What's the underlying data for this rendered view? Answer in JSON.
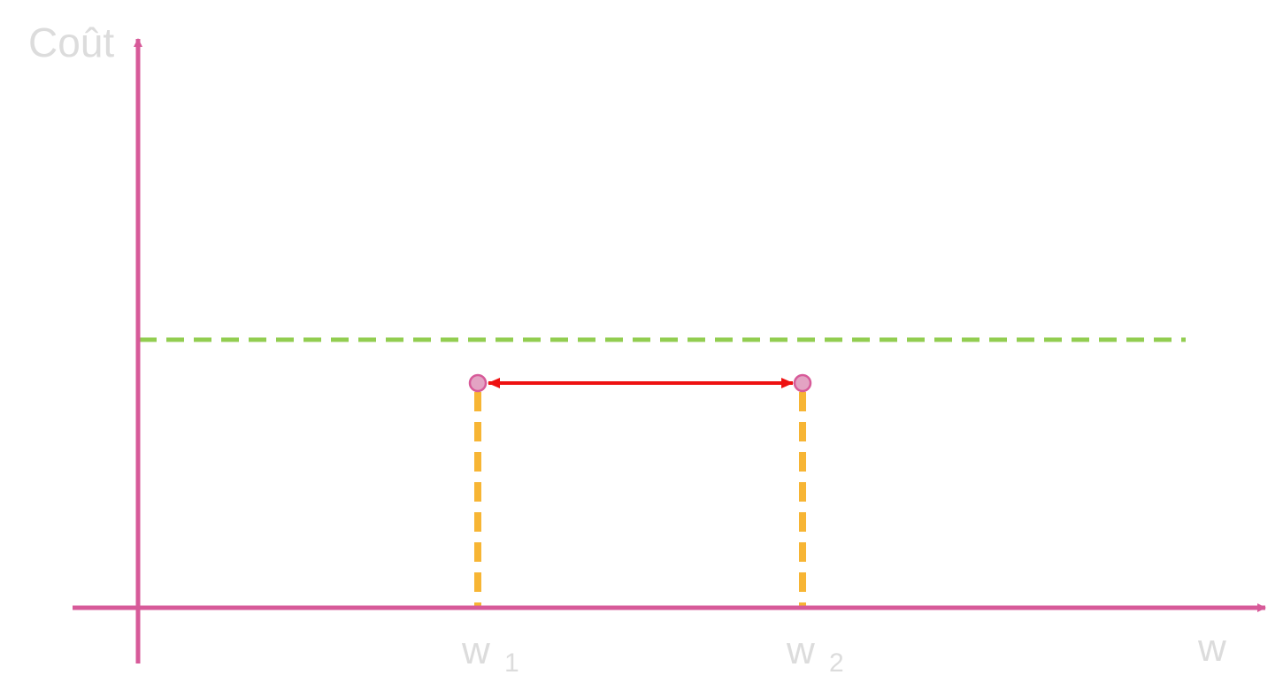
{
  "diagram": {
    "y_axis_label": "Coût",
    "x_axis_label": "w",
    "points": [
      {
        "base": "w",
        "subscript": "1"
      },
      {
        "base": "w",
        "subscript": "2"
      }
    ]
  },
  "colors": {
    "axis": "#d75a99",
    "threshold": "#92cd50",
    "guide": "#f7b534",
    "arrow": "#ee1111",
    "point_fill": "#e3a3c3",
    "point_stroke": "#d75a99",
    "text": "#dcdcdc"
  }
}
